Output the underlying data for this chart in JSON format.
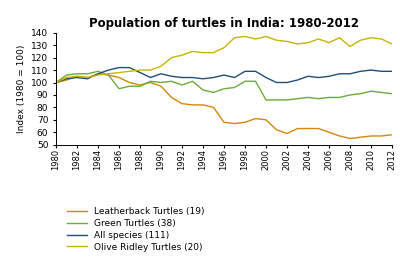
{
  "title": "Population of turtles in India: 1980-2012",
  "ylabel": "Index (1980 = 100)",
  "ylim": [
    50,
    140
  ],
  "yticks": [
    50,
    60,
    70,
    80,
    90,
    100,
    110,
    120,
    130,
    140
  ],
  "years": [
    1980,
    1981,
    1982,
    1983,
    1984,
    1985,
    1986,
    1987,
    1988,
    1989,
    1990,
    1991,
    1992,
    1993,
    1994,
    1995,
    1996,
    1997,
    1998,
    1999,
    2000,
    2001,
    2002,
    2003,
    2004,
    2005,
    2006,
    2007,
    2008,
    2009,
    2010,
    2011,
    2012
  ],
  "series": {
    "Leatherback Turtles (19)": {
      "color": "#D4870A",
      "values": [
        100,
        102,
        105,
        104,
        107,
        106,
        104,
        100,
        98,
        100,
        97,
        88,
        83,
        82,
        82,
        80,
        68,
        67,
        68,
        71,
        70,
        62,
        59,
        63,
        63,
        63,
        60,
        57,
        55,
        56,
        57,
        57,
        58
      ]
    },
    "Green Turtles (38)": {
      "color": "#6AAB3A",
      "values": [
        100,
        106,
        107,
        107,
        109,
        106,
        95,
        97,
        97,
        101,
        100,
        101,
        98,
        101,
        94,
        92,
        95,
        96,
        101,
        101,
        86,
        86,
        86,
        87,
        88,
        87,
        88,
        88,
        90,
        91,
        93,
        92,
        91
      ]
    },
    "All species (111)": {
      "color": "#1F4E79",
      "values": [
        100,
        103,
        104,
        103,
        107,
        110,
        112,
        112,
        108,
        104,
        107,
        105,
        104,
        104,
        103,
        104,
        106,
        104,
        109,
        109,
        104,
        100,
        100,
        102,
        105,
        104,
        105,
        107,
        107,
        109,
        110,
        109,
        109
      ]
    },
    "Olive Ridley Turtles (20)": {
      "color": "#C8B400",
      "values": [
        100,
        104,
        105,
        104,
        106,
        107,
        108,
        109,
        110,
        110,
        113,
        120,
        122,
        125,
        124,
        124,
        128,
        136,
        137,
        135,
        137,
        134,
        133,
        131,
        132,
        135,
        132,
        136,
        129,
        134,
        136,
        135,
        131
      ]
    }
  },
  "legend_order": [
    "Leatherback Turtles (19)",
    "Green Turtles (38)",
    "All species (111)",
    "Olive Ridley Turtles (20)"
  ],
  "xtick_years": [
    1980,
    1982,
    1984,
    1986,
    1988,
    1990,
    1992,
    1994,
    1996,
    1998,
    2000,
    2002,
    2004,
    2006,
    2008,
    2010,
    2012
  ]
}
